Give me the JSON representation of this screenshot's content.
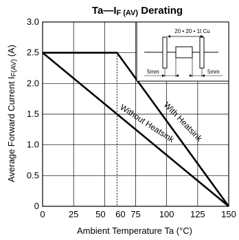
{
  "chart_data": {
    "type": "line",
    "title_main": "Ta—I",
    "title_sub": "F (AV)",
    "title_suffix": " Derating",
    "xlabel": "Ambient Temperature   Ta (°C)",
    "ylabel_main": "Average Forward Current   I",
    "ylabel_sub": "F(AV)",
    "ylabel_unit": " (A)",
    "xlim": [
      0,
      150
    ],
    "ylim": [
      0,
      3.0
    ],
    "x_ticks": [
      0,
      25,
      50,
      60,
      75,
      100,
      125,
      150
    ],
    "x_tick_labels": [
      "0",
      "25",
      "50",
      "60",
      "75",
      "100",
      "125",
      "150"
    ],
    "y_ticks": [
      0,
      0.5,
      1.0,
      1.5,
      2.0,
      2.5,
      3.0
    ],
    "y_tick_labels": [
      "0",
      "0.5",
      "1.0",
      "1.5",
      "2.0",
      "2.5",
      "3.0"
    ],
    "grid": true,
    "series": [
      {
        "name": "With Heatsink",
        "x": [
          0,
          60,
          150
        ],
        "y": [
          2.5,
          2.5,
          0
        ]
      },
      {
        "name": "Without Heatsink",
        "x": [
          0,
          150
        ],
        "y": [
          2.5,
          0
        ]
      }
    ],
    "reference_lines": [
      {
        "x": 60,
        "style": "dotted"
      }
    ],
    "inset": {
      "spec_label": "20 • 20 • 1t Cu",
      "left_dim": "5mm",
      "right_dim": "5mm"
    }
  }
}
